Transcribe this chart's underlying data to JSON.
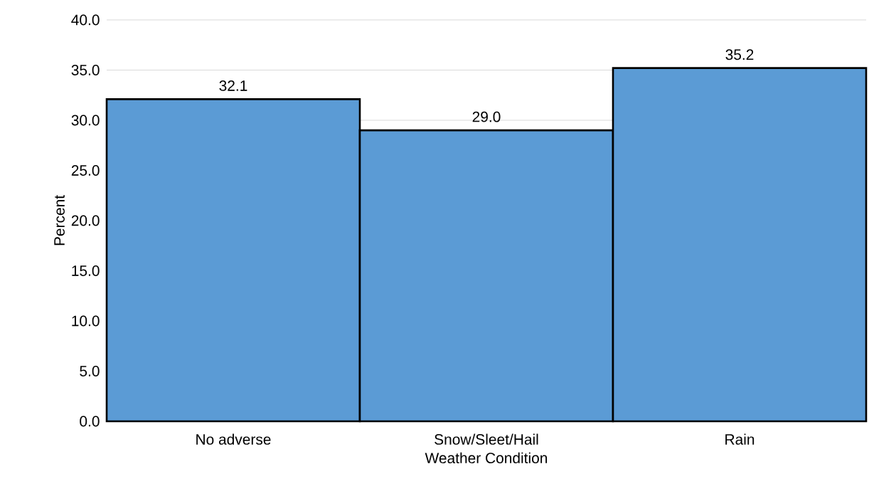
{
  "chart_data": {
    "type": "bar",
    "xlabel": "Weather Condition",
    "ylabel": "Percent",
    "categories": [
      "No adverse",
      "Snow/Sleet/Hail",
      "Rain"
    ],
    "values": [
      32.1,
      29.0,
      35.2
    ],
    "value_labels": [
      "32.1",
      "29.0",
      "35.2"
    ],
    "color": "#5b9bd5",
    "ylim": [
      0,
      40
    ],
    "yticks": [
      {
        "value": 0,
        "label": "0.0"
      },
      {
        "value": 5,
        "label": "5.0"
      },
      {
        "value": 10,
        "label": "10.0"
      },
      {
        "value": 15,
        "label": "15.0"
      },
      {
        "value": 20,
        "label": "20.0"
      },
      {
        "value": 25,
        "label": "25.0"
      },
      {
        "value": 30,
        "label": "30.0"
      },
      {
        "value": 35,
        "label": "35.0"
      },
      {
        "value": 40,
        "label": "40.0"
      }
    ],
    "grid": "y"
  }
}
